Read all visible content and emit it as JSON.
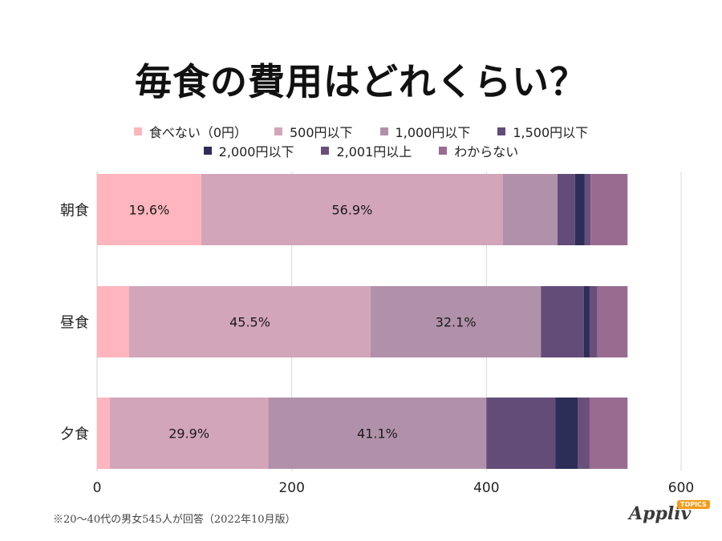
{
  "chart_data": {
    "type": "bar",
    "orientation": "horizontal",
    "stacked": true,
    "title": "毎食の費用はどれくらい？",
    "categories": [
      "朝食",
      "昼食",
      "夕食"
    ],
    "series": [
      {
        "name": "食べない（0円）",
        "color": "#ffb5bd",
        "values": [
          107,
          33,
          13
        ]
      },
      {
        "name": "500円以下",
        "color": "#d2a5b9",
        "values": [
          310,
          248,
          163
        ]
      },
      {
        "name": "1,000円以下",
        "color": "#b191a9",
        "values": [
          56,
          175,
          224
        ]
      },
      {
        "name": "1,500円以下",
        "color": "#634c78",
        "values": [
          18,
          44,
          71
        ]
      },
      {
        "name": "2,000円以下",
        "color": "#2d2e58",
        "values": [
          10,
          6,
          23
        ]
      },
      {
        "name": "2,001円以上",
        "color": "#6a4f7a",
        "values": [
          6,
          8,
          12
        ]
      },
      {
        "name": "わからない",
        "color": "#9a6b91",
        "values": [
          38,
          31,
          39
        ]
      }
    ],
    "data_labels": [
      {
        "category": "朝食",
        "series": "食べない（0円）",
        "text": "19.6%"
      },
      {
        "category": "朝食",
        "series": "500円以下",
        "text": "56.9%"
      },
      {
        "category": "昼食",
        "series": "500円以下",
        "text": "45.5%"
      },
      {
        "category": "昼食",
        "series": "1,000円以下",
        "text": "32.1%"
      },
      {
        "category": "夕食",
        "series": "500円以下",
        "text": "29.9%"
      },
      {
        "category": "夕食",
        "series": "1,000円以下",
        "text": "41.1%"
      }
    ],
    "xlim": [
      0,
      600
    ],
    "x_ticks": [
      0,
      200,
      400,
      600
    ],
    "grid": true,
    "legend_position": "top"
  },
  "footnote": "※20～40代の男女545人が回答（2022年10月版）",
  "logo": {
    "name": "Appliv",
    "badge": "TOPICS"
  }
}
